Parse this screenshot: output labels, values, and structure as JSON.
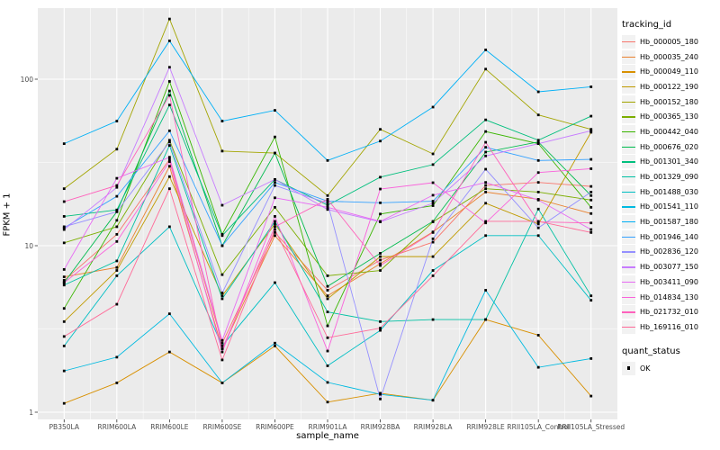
{
  "figure": {
    "x_axis_title": "sample_name",
    "y_axis_title": "FPKM + 1"
  },
  "legend": {
    "tracking_title": "tracking_id",
    "quant_title": "quant_status",
    "quant_items": [
      {
        "label": "OK",
        "marker": "black-square"
      }
    ]
  },
  "chart_data": {
    "type": "line",
    "title": "",
    "xlabel": "sample_name",
    "ylabel": "FPKM + 1",
    "y_scale": "log10",
    "ylim": [
      1,
      260
    ],
    "y_ticks": [
      1,
      10,
      100
    ],
    "grid": true,
    "panel_color": "#ebebeb",
    "grid_color": "#ffffff",
    "point_marker": "black-square",
    "legend_position": "right",
    "categories": [
      "PB350LA",
      "RRIM600LA",
      "RRIM600LE",
      "RRIM600SE",
      "RRIM600PE",
      "RRIM901LA",
      "RRIM928BA",
      "RRIM928LA",
      "RRIM928LE",
      "RRII105LA_Control",
      "RRII105LA_Stressed"
    ],
    "series": [
      {
        "name": "Hb_000005_180",
        "color": "#F8766D",
        "values": [
          6.2,
          11.7,
          33,
          2.6,
          12,
          5.4,
          8.2,
          10.5,
          23,
          24,
          22.7
        ]
      },
      {
        "name": "Hb_000035_240",
        "color": "#EA8331",
        "values": [
          6.5,
          7.4,
          30,
          2.4,
          11.5,
          5.0,
          7.8,
          12.1,
          21,
          19,
          15.6
        ]
      },
      {
        "name": "Hb_000049_110",
        "color": "#D89000",
        "values": [
          1.13,
          1.5,
          2.3,
          1.5,
          2.5,
          1.15,
          1.3,
          1.18,
          3.6,
          2.9,
          1.25
        ]
      },
      {
        "name": "Hb_000122_190",
        "color": "#C09B00",
        "values": [
          3.5,
          7.1,
          26,
          5.0,
          13.5,
          4.8,
          8.6,
          8.6,
          18,
          13.5,
          48
        ]
      },
      {
        "name": "Hb_000152_180",
        "color": "#A3A500",
        "values": [
          22,
          38,
          230,
          37,
          36,
          20,
          50,
          35.6,
          115,
          61,
          50
        ]
      },
      {
        "name": "Hb_000365_130",
        "color": "#7CAE00",
        "values": [
          10.4,
          13,
          43,
          6.7,
          17,
          6.6,
          7.1,
          13.9,
          22,
          21,
          18.8
        ]
      },
      {
        "name": "Hb_000442_040",
        "color": "#39B600",
        "values": [
          4.2,
          14.2,
          97,
          11.7,
          45,
          3.3,
          15.5,
          17.4,
          48.5,
          41,
          17
        ]
      },
      {
        "name": "Hb_000676_020",
        "color": "#00BB4E",
        "values": [
          6.0,
          16,
          85,
          10,
          36,
          5.7,
          9.0,
          14,
          36.5,
          42,
          20
        ]
      },
      {
        "name": "Hb_001301_340",
        "color": "#00BF7D",
        "values": [
          15,
          16.4,
          70,
          11.5,
          25,
          17.5,
          25.8,
          30.7,
          57,
          43,
          60
        ]
      },
      {
        "name": "Hb_001329_090",
        "color": "#00C1A3",
        "values": [
          5.8,
          8.1,
          40,
          4.8,
          14,
          4.0,
          3.5,
          3.6,
          3.6,
          16.6,
          5.0
        ]
      },
      {
        "name": "Hb_001488_030",
        "color": "#00BFC4",
        "values": [
          2.5,
          6.6,
          13,
          2.5,
          6.0,
          1.9,
          3.1,
          7.1,
          11.5,
          11.5,
          4.7
        ]
      },
      {
        "name": "Hb_001541_110",
        "color": "#00BAE0",
        "values": [
          1.77,
          2.14,
          3.9,
          1.5,
          2.6,
          1.51,
          1.28,
          1.18,
          5.4,
          1.86,
          2.1
        ]
      },
      {
        "name": "Hb_001587_180",
        "color": "#00B0F6",
        "values": [
          41,
          56,
          170,
          56,
          65,
          32.5,
          42.5,
          68,
          150,
          84,
          90
        ]
      },
      {
        "name": "Hb_001946_140",
        "color": "#35A2FF",
        "values": [
          12.8,
          19.8,
          49,
          10,
          24,
          18.5,
          18.1,
          18.5,
          39,
          32.5,
          33
        ]
      },
      {
        "name": "Hb_002836_120",
        "color": "#9590FF",
        "values": [
          13,
          16,
          42,
          5.2,
          23,
          18,
          1.2,
          11,
          28.8,
          12.8,
          21
        ]
      },
      {
        "name": "Hb_003077_150",
        "color": "#C77CFF",
        "values": [
          12.5,
          22.4,
          118,
          17.5,
          25,
          16.5,
          13.9,
          18,
          34.6,
          41,
          49
        ]
      },
      {
        "name": "Hb_003411_090",
        "color": "#E76BF3",
        "values": [
          7.2,
          25.4,
          34,
          2.7,
          19.4,
          17,
          14,
          20.1,
          24,
          18.8,
          12.5
        ]
      },
      {
        "name": "Hb_014834_130",
        "color": "#FA62DB",
        "values": [
          6.0,
          10.6,
          32,
          2.3,
          15,
          2.33,
          21.9,
          23.9,
          13.7,
          27.5,
          29
        ]
      },
      {
        "name": "Hb_021732_010",
        "color": "#FF62BC",
        "values": [
          18.4,
          23,
          80,
          2.4,
          13,
          19,
          7.6,
          12,
          41.8,
          13.9,
          13.7
        ]
      },
      {
        "name": "Hb_169116_010",
        "color": "#FF6A98",
        "values": [
          2.85,
          4.45,
          22,
          2.06,
          12.5,
          2.8,
          3.2,
          6.6,
          14,
          14,
          12
        ]
      }
    ]
  }
}
